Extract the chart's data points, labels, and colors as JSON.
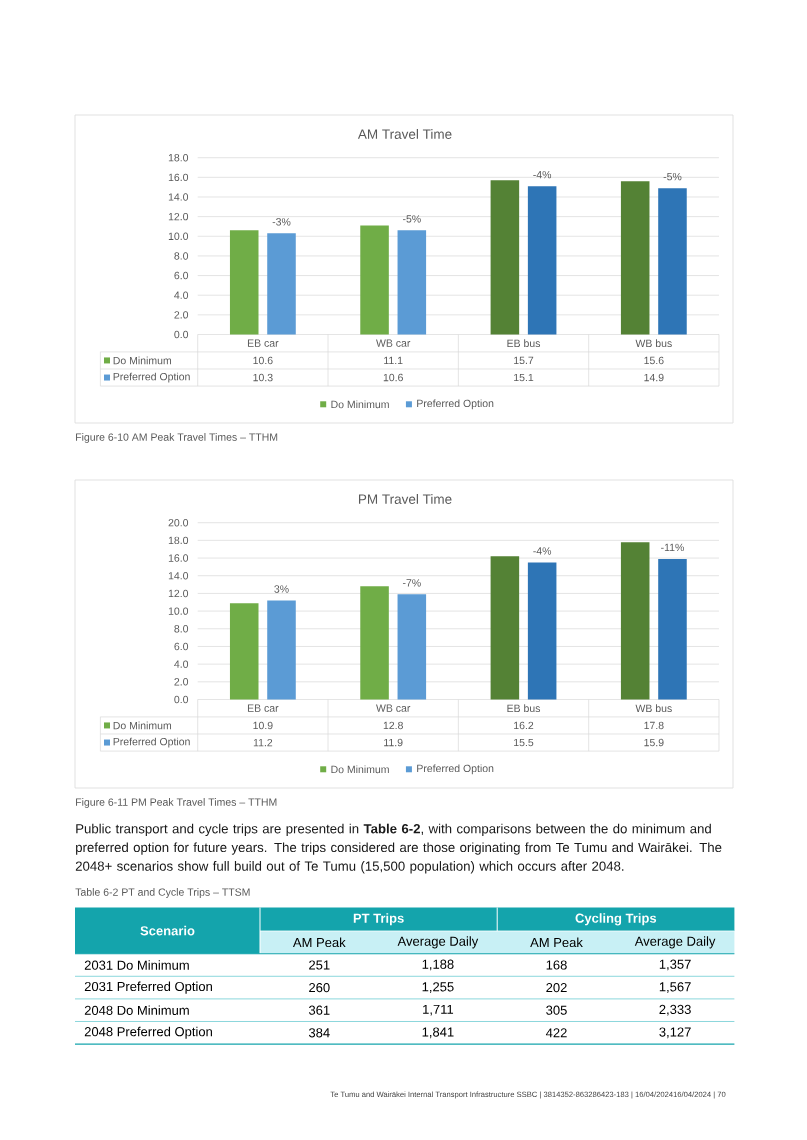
{
  "chart_data": [
    {
      "type": "bar",
      "title": "AM Travel Time",
      "categories": [
        "EB car",
        "WB car",
        "EB bus",
        "WB bus"
      ],
      "series": [
        {
          "name": "Do Minimum",
          "color": "#70ad47",
          "colors": [
            "#70ad47",
            "#70ad47",
            "#548235",
            "#548235"
          ],
          "values": [
            10.6,
            11.1,
            15.7,
            15.6
          ]
        },
        {
          "name": "Preferred Option",
          "color": "#5b9bd5",
          "colors": [
            "#5b9bd5",
            "#5b9bd5",
            "#2e75b6",
            "#2e75b6"
          ],
          "values": [
            10.3,
            10.6,
            15.1,
            14.9
          ]
        }
      ],
      "ylim": [
        0,
        18
      ],
      "yticks": [
        {
          "value": 0,
          "label": "0.0"
        },
        {
          "value": 2,
          "label": "2.0"
        },
        {
          "value": 4,
          "label": "4.0"
        },
        {
          "value": 6,
          "label": "6.0"
        },
        {
          "value": 8,
          "label": "8.0"
        },
        {
          "value": 10,
          "label": "10.0"
        },
        {
          "value": 12,
          "label": "12.0"
        },
        {
          "value": 14,
          "label": "14.0"
        },
        {
          "value": 16,
          "label": "16.0"
        },
        {
          "value": 18,
          "label": "18.0"
        }
      ],
      "grid": "y",
      "legend": "bottom",
      "data_labels": true,
      "annotations": [
        "-3%",
        "-5%",
        "-4%",
        "-5%",
        "Figure 6-10 AM Peak Travel Times – TTHM"
      ]
    },
    {
      "type": "bar",
      "title": "PM Travel Time",
      "categories": [
        "EB car",
        "WB car",
        "EB bus",
        "WB bus"
      ],
      "series": [
        {
          "name": "Do Minimum",
          "color": "#70ad47",
          "colors": [
            "#70ad47",
            "#70ad47",
            "#548235",
            "#548235"
          ],
          "values": [
            10.9,
            12.8,
            16.2,
            17.8
          ]
        },
        {
          "name": "Preferred Option",
          "color": "#5b9bd5",
          "colors": [
            "#5b9bd5",
            "#5b9bd5",
            "#2e75b6",
            "#2e75b6"
          ],
          "values": [
            11.2,
            11.9,
            15.5,
            15.9
          ]
        }
      ],
      "ylim": [
        0,
        20
      ],
      "yticks": [
        {
          "value": 0,
          "label": "0.0"
        },
        {
          "value": 2,
          "label": "2.0"
        },
        {
          "value": 4,
          "label": "4.0"
        },
        {
          "value": 6,
          "label": "6.0"
        },
        {
          "value": 8,
          "label": "8.0"
        },
        {
          "value": 10,
          "label": "10.0"
        },
        {
          "value": 12,
          "label": "12.0"
        },
        {
          "value": 14,
          "label": "14.0"
        },
        {
          "value": 16,
          "label": "16.0"
        },
        {
          "value": 18,
          "label": "18.0"
        },
        {
          "value": 20,
          "label": "20.0"
        }
      ],
      "grid": "y",
      "legend": "bottom",
      "data_labels": true,
      "annotations": [
        "3%",
        "-7%",
        "-4%",
        "-11%",
        "Figure 6-11 PM Peak Travel Times – TTHM"
      ]
    },
    {
      "type": "other",
      "title": "Table 6-2 PT and Cycle Trips – TTSM",
      "xlabel": "Scenario",
      "categories": [
        "2031 Do Minimum",
        "2031 Preferred Option",
        "2048 Do Minimum",
        "2048 Preferred Option"
      ],
      "series": [
        {
          "name": "AM Peak",
          "values": [
            251,
            260,
            361,
            384
          ]
        },
        {
          "name": "Average Daily",
          "values": [
            1188,
            1255,
            1711,
            1841
          ],
          "value_labels": [
            "1,188",
            "1,255",
            "1,711",
            "1,841"
          ]
        },
        {
          "name": "AM Peak",
          "values": [
            168,
            202,
            305,
            422
          ]
        },
        {
          "name": "Average Daily",
          "values": [
            1357,
            1567,
            2333,
            3127
          ],
          "value_labels": [
            "1,357",
            "1,567",
            "2,333",
            "3,127"
          ]
        }
      ],
      "data_labels": true,
      "annotations": [
        "Public transport and cycle trips are presented in **Table 6-2**, with comparisons between the do minimum and preferred option for future years. The trips considered are those originating from Te Tumu and Wairākei. The 2048+ scenarios show full build out of Te Tumu (15,500 population) which occurs after 2048.",
        "PT Trips",
        "Cycling Trips",
        "Te Tumu and Wairākei Internal Transport Infrastructure SSBC | 3814352-863286423-183 | 16/04/202416/04/2024 | 70"
      ]
    }
  ]
}
